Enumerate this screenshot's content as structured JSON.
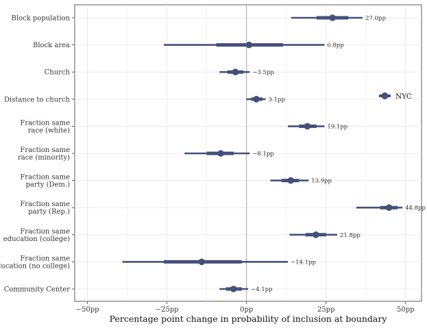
{
  "chart_data": {
    "type": "coefficient-plot",
    "title": "",
    "xlabel": "Percentage point change in probability of inclusion at boundary",
    "ylabel": "",
    "xlim": [
      -54,
      55
    ],
    "x_ticks": [
      -50,
      -25,
      0,
      25,
      50
    ],
    "x_tick_labels": [
      "−50pp",
      "−25pp",
      "0pp",
      "25pp",
      "50pp"
    ],
    "reference_line": 0,
    "grid": true,
    "legend": {
      "label": "NYC",
      "position": "right"
    },
    "colors": {
      "series": "#44507a",
      "grid": "#ebebeb",
      "reference": "#aaaaaa",
      "axis": "#333333"
    },
    "series": [
      {
        "name": "NYC",
        "points": [
          {
            "category": [
              "Block population"
            ],
            "estimate": 27.0,
            "inner": [
              22.0,
              32.0
            ],
            "outer": [
              14.0,
              36.5
            ],
            "label": "27.0pp"
          },
          {
            "category": [
              "Block area"
            ],
            "estimate": 0.8,
            "inner": [
              -9.5,
              11.5
            ],
            "outer": [
              -26.0,
              24.5
            ],
            "label": "0.8pp"
          },
          {
            "category": [
              "Church"
            ],
            "estimate": -3.5,
            "inner": [
              -6.0,
              -1.0
            ],
            "outer": [
              -8.5,
              1.0
            ],
            "label": "−3.5pp"
          },
          {
            "category": [
              "Distance to church"
            ],
            "estimate": 3.1,
            "inner": [
              1.5,
              5.0
            ],
            "outer": [
              0.0,
              6.0
            ],
            "label": "3.1pp"
          },
          {
            "category": [
              "Fraction same",
              "race (white)"
            ],
            "estimate": 19.1,
            "inner": [
              16.5,
              22.0
            ],
            "outer": [
              13.0,
              24.5
            ],
            "label": "19.1pp"
          },
          {
            "category": [
              "Fraction same",
              "race (minority)"
            ],
            "estimate": -8.1,
            "inner": [
              -12.5,
              -4.0
            ],
            "outer": [
              -19.5,
              1.0
            ],
            "label": "−8.1pp"
          },
          {
            "category": [
              "Fraction same",
              "party (Dem.)"
            ],
            "estimate": 13.9,
            "inner": [
              11.0,
              16.5
            ],
            "outer": [
              7.5,
              19.5
            ],
            "label": "13.9pp"
          },
          {
            "category": [
              "Fraction same",
              "party (Rep.)"
            ],
            "estimate": 44.8,
            "inner": [
              42.0,
              47.5
            ],
            "outer": [
              34.5,
              49.0
            ],
            "label": "44.8pp"
          },
          {
            "category": [
              "Fraction same",
              "education (college)"
            ],
            "estimate": 21.8,
            "inner": [
              18.5,
              25.0
            ],
            "outer": [
              13.5,
              28.5
            ],
            "label": "21.8pp"
          },
          {
            "category": [
              "Fraction same",
              "education (no college)"
            ],
            "estimate": -14.1,
            "inner": [
              -26.0,
              -1.5
            ],
            "outer": [
              -39.0,
              13.0
            ],
            "label": "−14.1pp"
          },
          {
            "category": [
              "Community Center"
            ],
            "estimate": -4.1,
            "inner": [
              -6.5,
              -1.5
            ],
            "outer": [
              -8.5,
              0.5
            ],
            "label": "−4.1pp"
          }
        ]
      }
    ]
  }
}
